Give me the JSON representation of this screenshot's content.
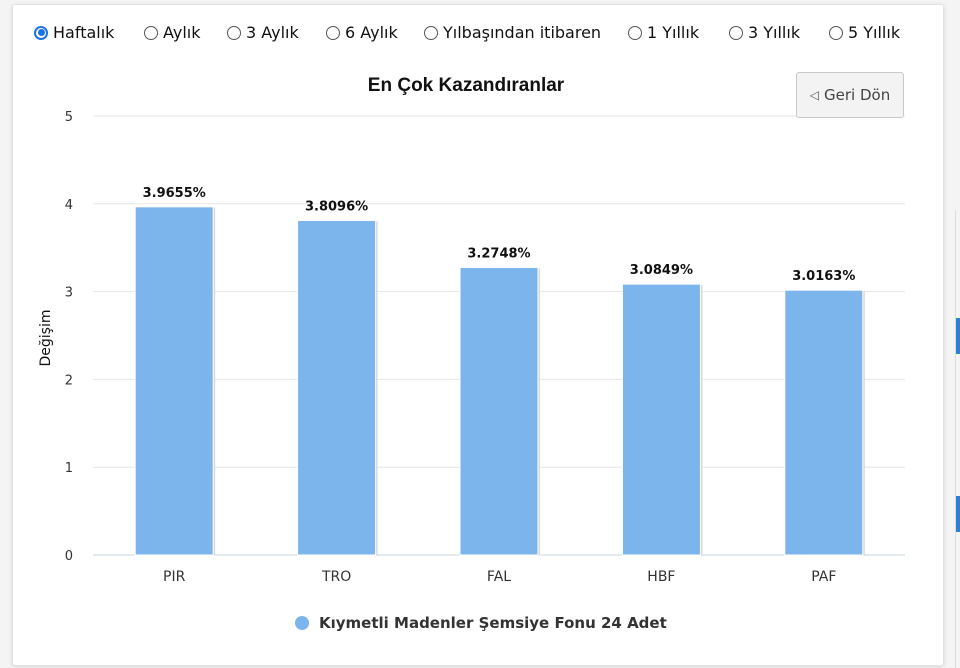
{
  "period_selector": {
    "options": [
      {
        "label": "Haftalık",
        "selected": true
      },
      {
        "label": "Aylık",
        "selected": false
      },
      {
        "label": "3 Aylık",
        "selected": false
      },
      {
        "label": "6 Aylık",
        "selected": false
      },
      {
        "label": "Yılbaşından itibaren",
        "selected": false
      },
      {
        "label": "1 Yıllık",
        "selected": false
      },
      {
        "label": "3 Yıllık",
        "selected": false
      },
      {
        "label": "5 Yıllık",
        "selected": false
      }
    ]
  },
  "back_button": {
    "label": "Geri Dön"
  },
  "colors": {
    "bar": "#7cb5ec",
    "accent": "#1a73e8"
  },
  "chart_data": {
    "type": "bar",
    "title": "En Çok Kazandıranlar",
    "xlabel": "",
    "ylabel": "Değişim",
    "ylim": [
      0,
      5
    ],
    "yticks": [
      0,
      1,
      2,
      3,
      4,
      5
    ],
    "grid": true,
    "legend_position": "bottom",
    "categories": [
      "PIR",
      "TRO",
      "FAL",
      "HBF",
      "PAF"
    ],
    "series": [
      {
        "name": "Kıymetli Madenler Şemsiye Fonu 24 Adet",
        "values": [
          3.9655,
          3.8096,
          3.2748,
          3.0849,
          3.0163
        ],
        "data_labels": [
          "3.9655%",
          "3.8096%",
          "3.2748%",
          "3.0849%",
          "3.0163%"
        ]
      }
    ]
  }
}
